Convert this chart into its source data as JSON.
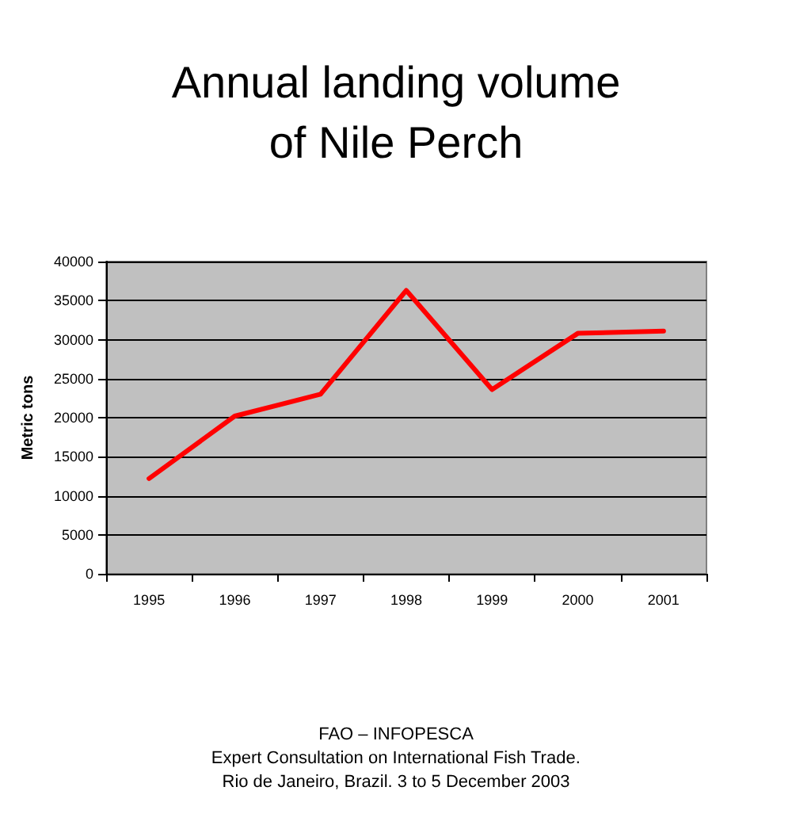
{
  "chart_data": {
    "type": "line",
    "title": "Annual landing volume\nof Nile Perch",
    "ylabel": "Metric tons",
    "categories": [
      "1995",
      "1996",
      "1997",
      "1998",
      "1999",
      "2000",
      "2001"
    ],
    "series": [
      {
        "color": "#ff0000",
        "values": [
          12200,
          20200,
          23000,
          36300,
          23600,
          30800,
          31100
        ]
      }
    ],
    "ylim": [
      0,
      40000
    ],
    "yticks": [
      0,
      5000,
      10000,
      15000,
      20000,
      25000,
      30000,
      35000,
      40000
    ],
    "grid": "y",
    "marker": "none",
    "line_style": "solid",
    "annotations": [
      "FAO – INFOPESCA",
      "Expert Consultation on International Fish Trade.",
      "Rio de Janeiro, Brazil. 3 to 5 December 2003"
    ]
  }
}
